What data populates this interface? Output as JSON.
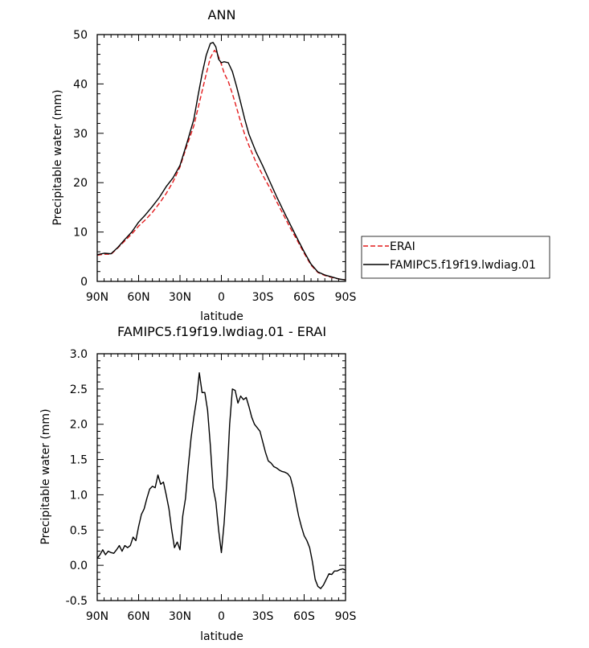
{
  "chart_data": [
    {
      "type": "line",
      "title": "ANN",
      "xlabel": "latitude",
      "ylabel": "Precipitable water (mm)",
      "xlim": [
        90,
        -90
      ],
      "ylim": [
        0,
        50
      ],
      "x_ticks": [
        90,
        60,
        30,
        0,
        -30,
        -60,
        -90
      ],
      "x_tick_labels": [
        "90N",
        "60N",
        "30N",
        "0",
        "30S",
        "60S",
        "90S"
      ],
      "y_ticks": [
        0,
        10,
        20,
        30,
        40,
        50
      ],
      "y_tick_labels": [
        "0",
        "10",
        "20",
        "30",
        "40",
        "50"
      ],
      "grid": false,
      "legend_position": "outside-right",
      "series": [
        {
          "name": "ERAI",
          "color": "#e41a1c",
          "dash": "dashed",
          "x": [
            90,
            85,
            80,
            75,
            70,
            65,
            60,
            55,
            50,
            45,
            40,
            35,
            30,
            25,
            20,
            17,
            14,
            11,
            8,
            5,
            3,
            0,
            -2,
            -5,
            -8,
            -11,
            -14,
            -17,
            -20,
            -25,
            -30,
            -35,
            -40,
            -45,
            -50,
            -55,
            -60,
            -65,
            -70,
            -75,
            -80,
            -85,
            -90
          ],
          "y": [
            5.3,
            5.5,
            5.5,
            6.8,
            8.2,
            9.6,
            11.2,
            12.5,
            14.0,
            15.8,
            17.8,
            20.2,
            23.2,
            27.5,
            31.5,
            35.0,
            38.5,
            42.0,
            45.3,
            46.8,
            46.2,
            44.0,
            42.2,
            40.5,
            38.0,
            35.2,
            32.3,
            29.7,
            27.5,
            24.2,
            21.5,
            19.0,
            16.2,
            13.5,
            10.8,
            8.3,
            5.7,
            3.3,
            1.8,
            1.2,
            0.8,
            0.5,
            0.3
          ]
        },
        {
          "name": "FAMIPC5.f19f19.lwdiag.01",
          "color": "#000000",
          "dash": "solid",
          "x": [
            90,
            85,
            80,
            75,
            70,
            65,
            60,
            55,
            50,
            45,
            40,
            35,
            30,
            25,
            20,
            17,
            14,
            11,
            8,
            6,
            4,
            2,
            0,
            -2,
            -5,
            -8,
            -11,
            -14,
            -17,
            -20,
            -25,
            -30,
            -35,
            -40,
            -45,
            -50,
            -55,
            -60,
            -65,
            -70,
            -75,
            -80,
            -85,
            -90
          ],
          "y": [
            5.4,
            5.7,
            5.6,
            6.9,
            8.5,
            10.0,
            12.0,
            13.5,
            15.2,
            17.0,
            19.2,
            21.0,
            23.5,
            28.0,
            32.8,
            37.5,
            42.0,
            45.8,
            48.2,
            48.4,
            47.5,
            45.0,
            44.3,
            44.5,
            44.3,
            42.5,
            39.5,
            36.2,
            32.8,
            29.8,
            26.3,
            23.4,
            20.3,
            17.2,
            14.3,
            11.5,
            8.7,
            6.0,
            3.5,
            1.9,
            1.3,
            0.9,
            0.5,
            0.3
          ]
        }
      ]
    },
    {
      "type": "line",
      "title": "FAMIPC5.f19f19.lwdiag.01 - ERAI",
      "xlabel": "latitude",
      "ylabel": "Precipitable water (mm)",
      "xlim": [
        90,
        -90
      ],
      "ylim": [
        -0.5,
        3.0
      ],
      "x_ticks": [
        90,
        60,
        30,
        0,
        -30,
        -60,
        -90
      ],
      "x_tick_labels": [
        "90N",
        "60N",
        "30N",
        "0",
        "30S",
        "60S",
        "90S"
      ],
      "y_ticks": [
        -0.5,
        0.0,
        0.5,
        1.0,
        1.5,
        2.0,
        2.5,
        3.0
      ],
      "y_tick_labels": [
        "-0.5",
        "0.0",
        "0.5",
        "1.0",
        "1.5",
        "2.0",
        "2.5",
        "3.0"
      ],
      "grid": false,
      "series": [
        {
          "color": "#000000",
          "dash": "solid",
          "x": [
            90,
            88,
            86,
            84,
            82,
            80,
            78,
            76,
            74,
            72,
            70,
            68,
            66,
            64,
            62,
            60,
            58,
            56,
            54,
            52,
            50,
            48,
            46,
            44,
            42,
            40,
            38,
            36,
            34,
            32,
            30,
            28,
            26,
            24,
            22,
            20,
            18,
            16,
            14,
            12,
            10,
            8,
            6,
            4,
            2,
            0,
            -2,
            -4,
            -6,
            -8,
            -10,
            -12,
            -14,
            -16,
            -18,
            -20,
            -22,
            -24,
            -26,
            -28,
            -30,
            -32,
            -34,
            -36,
            -38,
            -40,
            -42,
            -44,
            -46,
            -48,
            -50,
            -52,
            -54,
            -56,
            -58,
            -60,
            -62,
            -64,
            -66,
            -68,
            -70,
            -72,
            -74,
            -76,
            -78,
            -80,
            -82,
            -84,
            -86,
            -88,
            -90
          ],
          "y": [
            0.1,
            0.15,
            0.22,
            0.15,
            0.2,
            0.18,
            0.17,
            0.22,
            0.28,
            0.2,
            0.28,
            0.25,
            0.28,
            0.4,
            0.35,
            0.55,
            0.72,
            0.8,
            0.95,
            1.08,
            1.12,
            1.1,
            1.28,
            1.15,
            1.18,
            1.0,
            0.8,
            0.5,
            0.25,
            0.33,
            0.22,
            0.7,
            0.95,
            1.4,
            1.8,
            2.1,
            2.35,
            2.73,
            2.45,
            2.45,
            2.2,
            1.7,
            1.1,
            0.9,
            0.5,
            0.18,
            0.6,
            1.2,
            2.0,
            2.5,
            2.48,
            2.3,
            2.4,
            2.35,
            2.38,
            2.25,
            2.1,
            2.0,
            1.95,
            1.9,
            1.75,
            1.6,
            1.48,
            1.45,
            1.4,
            1.38,
            1.35,
            1.33,
            1.32,
            1.3,
            1.25,
            1.1,
            0.9,
            0.7,
            0.55,
            0.42,
            0.35,
            0.25,
            0.05,
            -0.2,
            -0.3,
            -0.33,
            -0.28,
            -0.2,
            -0.12,
            -0.13,
            -0.08,
            -0.08,
            -0.06,
            -0.05,
            -0.07
          ]
        }
      ]
    }
  ]
}
